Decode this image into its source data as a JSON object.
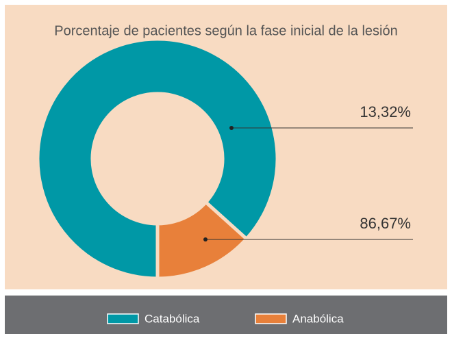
{
  "chart_data": {
    "type": "donut",
    "title": "Porcentaje de pacientes según la fase inicial de la lesión",
    "categories": [
      "Catabólica",
      "Anabólica"
    ],
    "values": [
      86.67,
      13.32
    ],
    "value_labels": [
      "86,67%",
      "13,32%"
    ],
    "colors": [
      "#0098a6",
      "#e8803a"
    ]
  }
}
